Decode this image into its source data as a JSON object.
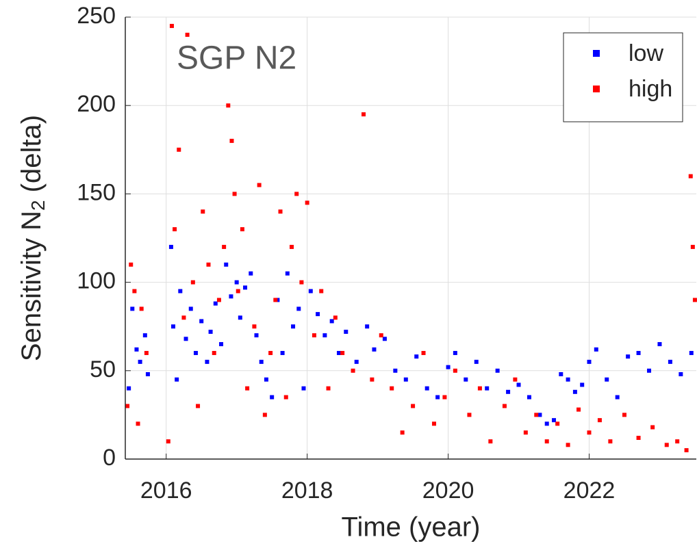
{
  "chart_data": {
    "type": "scatter",
    "title": "SGP N2",
    "xlabel": "Time (year)",
    "ylabel": [
      "Sensitivity N",
      "2",
      " (delta)"
    ],
    "xlim": [
      2015.42,
      2023.52
    ],
    "xticks": [
      2016,
      2018,
      2020,
      2022
    ],
    "ylim": [
      0,
      250
    ],
    "yticks": [
      0,
      50,
      100,
      150,
      200,
      250
    ],
    "grid": true,
    "legend": "upper right",
    "series": [
      {
        "name": "low",
        "color": "#0000ff",
        "x": [
          2015.47,
          2015.52,
          2015.58,
          2015.63,
          2015.7,
          2015.74,
          2016.07,
          2016.1,
          2016.15,
          2016.2,
          2016.28,
          2016.35,
          2016.42,
          2016.5,
          2016.58,
          2016.63,
          2016.7,
          2016.78,
          2016.85,
          2016.92,
          2017.0,
          2017.05,
          2017.12,
          2017.2,
          2017.28,
          2017.35,
          2017.42,
          2017.5,
          2017.58,
          2017.65,
          2017.72,
          2017.8,
          2017.88,
          2017.95,
          2018.05,
          2018.15,
          2018.25,
          2018.35,
          2018.45,
          2018.55,
          2018.7,
          2018.85,
          2018.95,
          2019.1,
          2019.25,
          2019.4,
          2019.55,
          2019.7,
          2019.85,
          2020.0,
          2020.1,
          2020.25,
          2020.4,
          2020.55,
          2020.7,
          2020.85,
          2021.0,
          2021.15,
          2021.3,
          2021.4,
          2021.5,
          2021.6,
          2021.7,
          2021.8,
          2021.9,
          2022.0,
          2022.1,
          2022.25,
          2022.4,
          2022.55,
          2022.7,
          2022.85,
          2023.0,
          2023.15,
          2023.3,
          2023.45
        ],
        "values": [
          40,
          85,
          62,
          55,
          70,
          48,
          120,
          75,
          45,
          95,
          68,
          85,
          60,
          78,
          55,
          72,
          88,
          65,
          110,
          92,
          100,
          80,
          97,
          105,
          70,
          55,
          45,
          35,
          90,
          60,
          105,
          75,
          85,
          40,
          95,
          82,
          70,
          78,
          60,
          72,
          55,
          75,
          62,
          68,
          50,
          45,
          58,
          40,
          35,
          52,
          60,
          45,
          55,
          40,
          50,
          38,
          42,
          35,
          25,
          20,
          22,
          48,
          45,
          38,
          42,
          55,
          62,
          45,
          35,
          58,
          60,
          50,
          65,
          55,
          48,
          60
        ]
      },
      {
        "name": "high",
        "color": "#ff0000",
        "x": [
          2015.45,
          2015.5,
          2015.55,
          2015.6,
          2015.65,
          2015.72,
          2016.03,
          2016.08,
          2016.12,
          2016.18,
          2016.25,
          2016.3,
          2016.38,
          2016.45,
          2016.52,
          2016.6,
          2016.68,
          2016.75,
          2016.82,
          2016.88,
          2016.93,
          2016.97,
          2017.02,
          2017.08,
          2017.15,
          2017.25,
          2017.32,
          2017.4,
          2017.48,
          2017.55,
          2017.62,
          2017.7,
          2017.78,
          2017.85,
          2017.92,
          2018.0,
          2018.1,
          2018.2,
          2018.3,
          2018.4,
          2018.5,
          2018.65,
          2018.8,
          2018.92,
          2019.05,
          2019.2,
          2019.35,
          2019.5,
          2019.65,
          2019.8,
          2019.95,
          2020.1,
          2020.3,
          2020.45,
          2020.6,
          2020.8,
          2020.95,
          2021.1,
          2021.25,
          2021.4,
          2021.55,
          2021.7,
          2021.85,
          2022.0,
          2022.15,
          2022.3,
          2022.5,
          2022.7,
          2022.9,
          2023.1,
          2023.25,
          2023.38,
          2023.44,
          2023.47,
          2023.5
        ],
        "values": [
          30,
          110,
          95,
          20,
          85,
          60,
          10,
          245,
          130,
          175,
          80,
          240,
          100,
          30,
          140,
          110,
          60,
          90,
          120,
          200,
          180,
          150,
          95,
          130,
          40,
          75,
          155,
          25,
          60,
          90,
          140,
          35,
          120,
          150,
          100,
          145,
          70,
          95,
          40,
          80,
          60,
          50,
          195,
          45,
          70,
          40,
          15,
          30,
          60,
          20,
          35,
          50,
          25,
          40,
          10,
          30,
          45,
          15,
          25,
          10,
          20,
          8,
          28,
          15,
          22,
          10,
          25,
          12,
          18,
          8,
          10,
          5,
          160,
          120,
          90
        ]
      }
    ]
  }
}
